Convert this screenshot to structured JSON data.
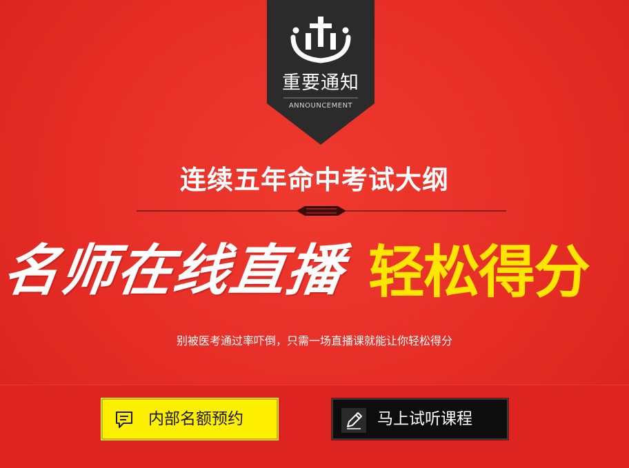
{
  "badge": {
    "title": "重要通知",
    "subtitle": "ANNOUNCEMENT",
    "logo_icon": "people-logo-icon"
  },
  "headline": "连续五年命中考试大纲",
  "slogan": {
    "calligraphy": "名师在线直播",
    "highlight": "轻松得分"
  },
  "tagline": "别被医考通过率吓倒，只需一场直播课就能让你轻松得分",
  "buttons": {
    "reserve": {
      "label": "内部名额预约",
      "icon": "message-icon"
    },
    "trial": {
      "label": "马上试听课程",
      "icon": "pencil-icon"
    }
  },
  "colors": {
    "background": "#e8302a",
    "highlight": "#ffe600",
    "badge": "#2b2b2b",
    "reserve_button": "#ffef00",
    "trial_button": "#0d0d0d"
  }
}
